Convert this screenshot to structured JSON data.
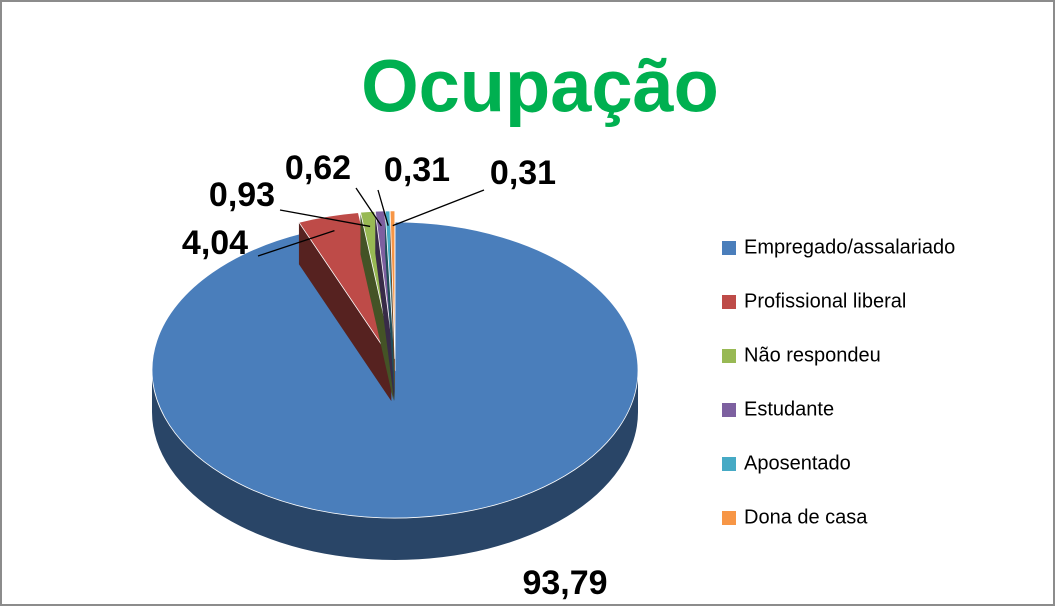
{
  "chart_data": {
    "type": "pie",
    "title": "Ocupação",
    "categories": [
      "Empregado/assalariado",
      "Profissional liberal",
      "Não respondeu",
      "Estudante",
      "Aposentado",
      "Dona de casa"
    ],
    "values": [
      93.79,
      4.04,
      0.93,
      0.62,
      0.31,
      0.31
    ],
    "value_labels": [
      "93,79",
      "4,04",
      "0,93",
      "0,62",
      "0,31",
      "0,31"
    ],
    "colors": [
      "#4a7ebb",
      "#be4b48",
      "#98b954",
      "#7d60a0",
      "#46aac5",
      "#f79646"
    ],
    "legend": "right"
  }
}
